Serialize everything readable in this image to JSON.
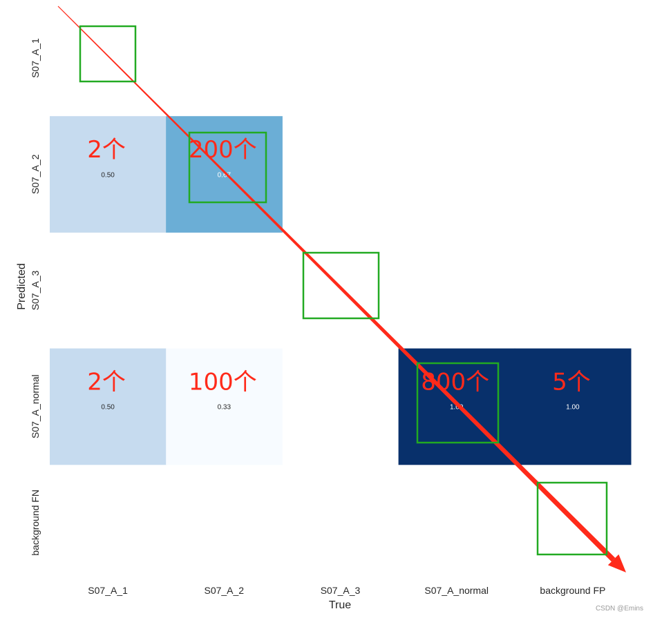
{
  "chart_data": {
    "type": "heatmap",
    "title": "",
    "xlabel": "True",
    "ylabel": "Predicted",
    "x_categories": [
      "S07_A_1",
      "S07_A_2",
      "S07_A_3",
      "S07_A_normal",
      "background FP"
    ],
    "y_categories": [
      "S07_A_1",
      "S07_A_2",
      "S07_A_3",
      "S07_A_normal",
      "background FN"
    ],
    "colormap": "Blues",
    "vmin": 0.0,
    "vmax": 1.0,
    "cells": [
      {
        "row": 1,
        "col": 0,
        "value": 0.5,
        "label": "0.50"
      },
      {
        "row": 1,
        "col": 1,
        "value": 0.67,
        "label": "0.67"
      },
      {
        "row": 3,
        "col": 0,
        "value": 0.5,
        "label": "0.50"
      },
      {
        "row": 3,
        "col": 1,
        "value": 0.33,
        "label": "0.33"
      },
      {
        "row": 3,
        "col": 3,
        "value": 1.0,
        "label": "1.00"
      },
      {
        "row": 3,
        "col": 4,
        "value": 1.0,
        "label": "1.00"
      }
    ],
    "annotations": [
      {
        "row": 1,
        "col": 0,
        "text": "2个"
      },
      {
        "row": 1,
        "col": 1,
        "text": "200个"
      },
      {
        "row": 3,
        "col": 0,
        "text": "2个"
      },
      {
        "row": 3,
        "col": 1,
        "text": "100个"
      },
      {
        "row": 3,
        "col": 3,
        "text": "800个"
      },
      {
        "row": 3,
        "col": 4,
        "text": "5个"
      }
    ],
    "highlight_boxes": [
      {
        "row": 0,
        "col": 0
      },
      {
        "row": 1,
        "col": 1
      },
      {
        "row": 2,
        "col": 2
      },
      {
        "row": 3,
        "col": 3
      },
      {
        "row": 4,
        "col": 4
      }
    ],
    "grid": false,
    "colorbar": false
  },
  "colors": {
    "cell_050": "#c6dbef",
    "cell_067": "#6baed6",
    "cell_033": "#f7fbff",
    "cell_100": "#08306b",
    "annotation_red": "#ff2a1a",
    "box_green": "#22aa22",
    "label_dark": "#262626",
    "label_light": "#ffffff"
  },
  "watermark": "CSDN @Emins"
}
